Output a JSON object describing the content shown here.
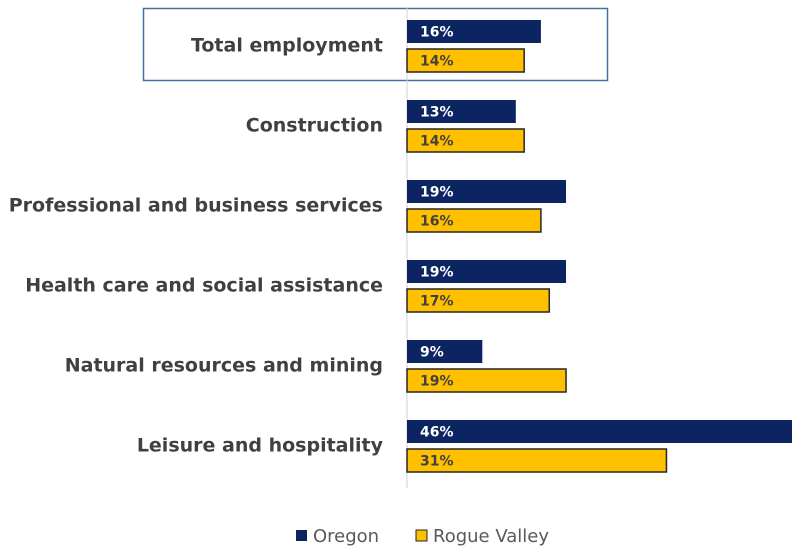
{
  "chart_data": {
    "type": "barh",
    "categories": [
      "Total employment",
      "Construction",
      "Professional and business services",
      "Health care and social assistance",
      "Natural resources and mining",
      "Leisure and hospitality"
    ],
    "series": [
      {
        "name": "Oregon",
        "color": "#0c2461",
        "values": [
          16,
          13,
          19,
          19,
          9,
          46
        ],
        "value_labels": [
          "16%",
          "13%",
          "19%",
          "19%",
          "9%",
          "46%"
        ]
      },
      {
        "name": "Rogue Valley",
        "color": "#ffc000",
        "values": [
          14,
          14,
          16,
          17,
          19,
          31
        ],
        "value_labels": [
          "14%",
          "14%",
          "16%",
          "17%",
          "19%",
          "31%"
        ]
      }
    ],
    "xlim": [
      0,
      46
    ],
    "legend": "bottom"
  }
}
